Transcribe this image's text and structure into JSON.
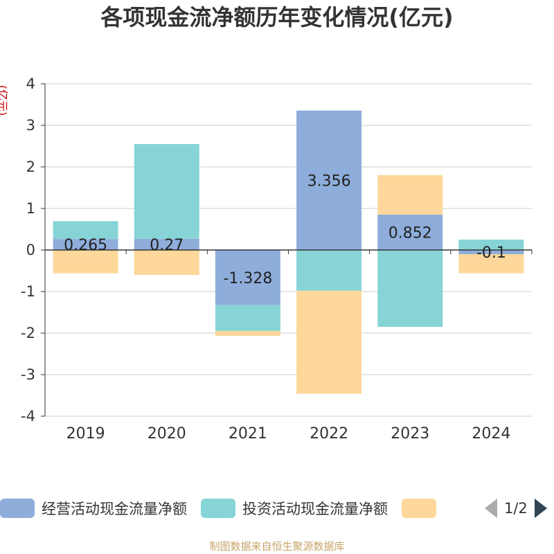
{
  "chart_data": {
    "type": "bar",
    "stacked": true,
    "title": "各项现金流净额历年变化情况(亿元)",
    "ylabel": "(亿元)",
    "xlabel": "",
    "categories": [
      "2019",
      "2020",
      "2021",
      "2022",
      "2023",
      "2024"
    ],
    "ylim": [
      -4,
      4
    ],
    "yticks": [
      4,
      3,
      2,
      1,
      0,
      -1,
      -2,
      -3,
      -4
    ],
    "grid": true,
    "series": [
      {
        "name": "经营活动现金流量净额",
        "color": "#8eadda",
        "values": [
          0.265,
          0.27,
          -1.328,
          3.356,
          0.852,
          -0.1
        ],
        "data_labels": [
          "0.265",
          "0.27",
          "-1.328",
          "3.356",
          "0.852",
          "-0.1"
        ]
      },
      {
        "name": "投资活动现金流量净额",
        "color": "#87d4d6",
        "values": [
          0.43,
          2.28,
          -0.62,
          -0.98,
          -1.85,
          0.25
        ]
      },
      {
        "name": "",
        "color": "#fdd89a",
        "values": [
          -0.56,
          -0.6,
          -0.12,
          -2.48,
          0.95,
          -0.46
        ]
      }
    ],
    "legend_position": "bottom",
    "legend_page": "1/2",
    "source": "制图数据来自恒生聚源数据库"
  }
}
